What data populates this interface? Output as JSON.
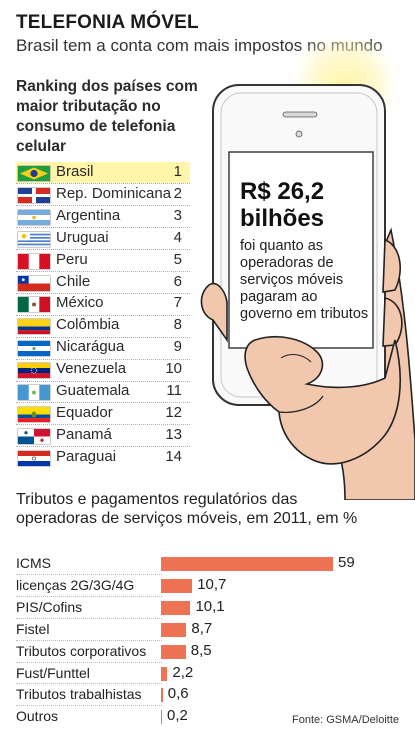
{
  "header": {
    "title": "TELEFONIA MÓVEL",
    "subtitle": "Brasil tem a conta com mais impostos no mundo"
  },
  "ranking": {
    "title": "Ranking dos países com maior tributação no consumo de telefonia celular",
    "items": [
      {
        "country": "Brasil",
        "rank": "1",
        "flag": "brazil-flag-icon"
      },
      {
        "country": "Rep. Dominicana",
        "rank": "2",
        "flag": "dominican-republic-flag-icon"
      },
      {
        "country": "Argentina",
        "rank": "3",
        "flag": "argentina-flag-icon"
      },
      {
        "country": "Uruguai",
        "rank": "4",
        "flag": "uruguay-flag-icon"
      },
      {
        "country": "Peru",
        "rank": "5",
        "flag": "peru-flag-icon"
      },
      {
        "country": "Chile",
        "rank": "6",
        "flag": "chile-flag-icon"
      },
      {
        "country": "México",
        "rank": "7",
        "flag": "mexico-flag-icon"
      },
      {
        "country": "Colômbia",
        "rank": "8",
        "flag": "colombia-flag-icon"
      },
      {
        "country": "Nicarágua",
        "rank": "9",
        "flag": "nicaragua-flag-icon"
      },
      {
        "country": "Venezuela",
        "rank": "10",
        "flag": "venezuela-flag-icon"
      },
      {
        "country": "Guatemala",
        "rank": "11",
        "flag": "guatemala-flag-icon"
      },
      {
        "country": "Equador",
        "rank": "12",
        "flag": "ecuador-flag-icon"
      },
      {
        "country": "Panamá",
        "rank": "13",
        "flag": "panama-flag-icon"
      },
      {
        "country": "Paraguai",
        "rank": "14",
        "flag": "paraguay-flag-icon"
      }
    ],
    "highlight_color": "#fff5a8"
  },
  "phone_stat": {
    "value": "R$ 26,2 bilhões",
    "text": "foi quanto as operadoras de serviços móveis pagaram ao governo em tributos",
    "phone_icon": "smartphone-in-hand-icon"
  },
  "chart_data": {
    "type": "bar",
    "orientation": "horizontal",
    "title": "Tributos e pagamentos regulatórios das operadoras de serviços móveis, em 2011, em %",
    "categories": [
      "ICMS",
      "licenças 2G/3G/4G",
      "PIS/Cofins",
      "Fistel",
      "Tributos corporativos",
      "Fust/Funttel",
      "Tributos trabalhistas",
      "Outros"
    ],
    "values": [
      59,
      10.7,
      10.1,
      8.7,
      8.5,
      2.2,
      0.6,
      0.2
    ],
    "value_labels": [
      "59",
      "10,7",
      "10,1",
      "8,7",
      "8,5",
      "2,2",
      "0,6",
      "0,2"
    ],
    "bar_color": "#ee7353",
    "source": "Fonte: GSMA/Deloitte"
  }
}
